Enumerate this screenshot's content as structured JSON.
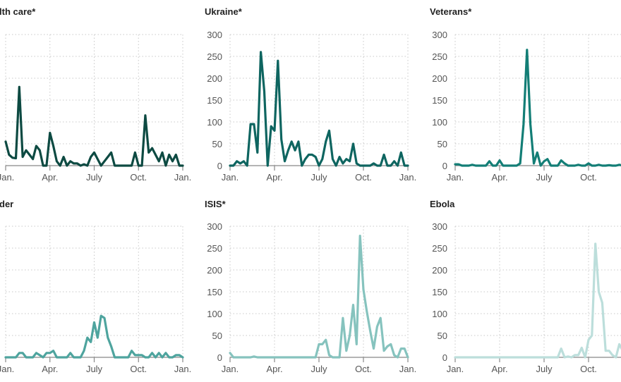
{
  "chart_data": [
    {
      "type": "line",
      "title": "Health care*",
      "title_visible": "lth care*",
      "color": "#0d4a42",
      "x_ticks": [
        "Jan.",
        "Apr.",
        "July",
        "Oct.",
        "Jan."
      ],
      "y_ticks": [],
      "ylim": [
        0,
        300
      ],
      "grid": true,
      "x": "weeks 0-52 of year",
      "values": [
        55,
        25,
        18,
        17,
        180,
        20,
        35,
        25,
        15,
        45,
        35,
        0,
        0,
        75,
        45,
        10,
        0,
        20,
        0,
        10,
        5,
        5,
        0,
        3,
        0,
        20,
        30,
        15,
        0,
        10,
        20,
        30,
        0,
        0,
        0,
        0,
        0,
        0,
        30,
        0,
        0,
        115,
        30,
        40,
        25,
        10,
        30,
        0,
        25,
        10,
        25,
        0,
        0
      ]
    },
    {
      "type": "line",
      "title": "Ukraine*",
      "title_visible": "Ukraine*",
      "color": "#0e6560",
      "x_ticks": [
        "Jan.",
        "Apr.",
        "July",
        "Oct.",
        "Jan."
      ],
      "y_ticks": [
        "0",
        "50",
        "100",
        "150",
        "200",
        "250",
        "300"
      ],
      "ylim": [
        0,
        300
      ],
      "grid": true,
      "values": [
        0,
        0,
        10,
        5,
        10,
        0,
        95,
        95,
        30,
        260,
        170,
        0,
        90,
        80,
        240,
        60,
        10,
        35,
        55,
        35,
        55,
        0,
        15,
        25,
        25,
        20,
        0,
        15,
        55,
        80,
        15,
        0,
        20,
        5,
        15,
        10,
        50,
        5,
        0,
        0,
        0,
        0,
        5,
        0,
        0,
        25,
        0,
        0,
        10,
        0,
        30,
        0,
        0
      ]
    },
    {
      "type": "line",
      "title": "Veterans*",
      "title_visible": "Veterans*",
      "color": "#137e76",
      "x_ticks": [
        "Jan.",
        "Apr.",
        "July",
        "Oct."
      ],
      "y_ticks": [
        "0",
        "50",
        "100",
        "150",
        "200",
        "250",
        "300"
      ],
      "ylim": [
        0,
        300
      ],
      "grid": true,
      "values": [
        3,
        3,
        0,
        0,
        0,
        2,
        0,
        0,
        0,
        0,
        10,
        0,
        0,
        12,
        0,
        0,
        0,
        0,
        0,
        5,
        95,
        265,
        95,
        5,
        30,
        0,
        10,
        15,
        0,
        0,
        0,
        12,
        5,
        0,
        0,
        0,
        2,
        0,
        0,
        5,
        0,
        0,
        2,
        0,
        0,
        1,
        0,
        0,
        2,
        0,
        0,
        0
      ]
    },
    {
      "type": "line",
      "title": "Border",
      "title_visible": "der",
      "color": "#4ea49e",
      "x_ticks": [
        "Jan.",
        "Apr.",
        "July",
        "Oct.",
        "Jan."
      ],
      "y_ticks": [],
      "ylim": [
        0,
        300
      ],
      "grid": true,
      "values": [
        0,
        0,
        0,
        0,
        10,
        10,
        0,
        0,
        0,
        10,
        5,
        0,
        10,
        10,
        15,
        0,
        0,
        0,
        0,
        10,
        0,
        0,
        0,
        15,
        45,
        35,
        80,
        45,
        95,
        90,
        45,
        25,
        0,
        0,
        0,
        0,
        0,
        15,
        5,
        5,
        5,
        0,
        0,
        10,
        0,
        10,
        0,
        10,
        0,
        0,
        5,
        5,
        0
      ]
    },
    {
      "type": "line",
      "title": "ISIS*",
      "title_visible": "ISIS*",
      "color": "#86c3be",
      "x_ticks": [
        "Jan.",
        "Apr.",
        "July",
        "Oct.",
        "Jan."
      ],
      "y_ticks": [
        "0",
        "50",
        "100",
        "150",
        "200",
        "250",
        "300"
      ],
      "ylim": [
        0,
        300
      ],
      "grid": true,
      "values": [
        10,
        0,
        0,
        0,
        0,
        0,
        0,
        2,
        0,
        0,
        0,
        0,
        0,
        0,
        0,
        0,
        0,
        0,
        0,
        0,
        0,
        0,
        0,
        0,
        0,
        0,
        30,
        30,
        40,
        5,
        0,
        0,
        0,
        90,
        15,
        50,
        120,
        30,
        278,
        155,
        105,
        60,
        20,
        70,
        90,
        15,
        25,
        30,
        5,
        0,
        20,
        20,
        0
      ]
    },
    {
      "type": "line",
      "title": "Ebola",
      "title_visible": "Ebola",
      "color": "#bcdedb",
      "x_ticks": [
        "Jan.",
        "Apr.",
        "July",
        "Oct."
      ],
      "y_ticks": [
        "0",
        "50",
        "100",
        "150",
        "200",
        "250",
        "300"
      ],
      "ylim": [
        0,
        300
      ],
      "grid": true,
      "values": [
        0,
        0,
        0,
        0,
        0,
        0,
        0,
        0,
        0,
        0,
        0,
        0,
        0,
        0,
        0,
        0,
        0,
        0,
        0,
        0,
        0,
        0,
        0,
        0,
        0,
        0,
        0,
        0,
        0,
        0,
        0,
        20,
        0,
        2,
        0,
        5,
        5,
        22,
        0,
        40,
        50,
        260,
        150,
        125,
        15,
        15,
        5,
        0,
        30,
        15,
        0
      ]
    }
  ]
}
